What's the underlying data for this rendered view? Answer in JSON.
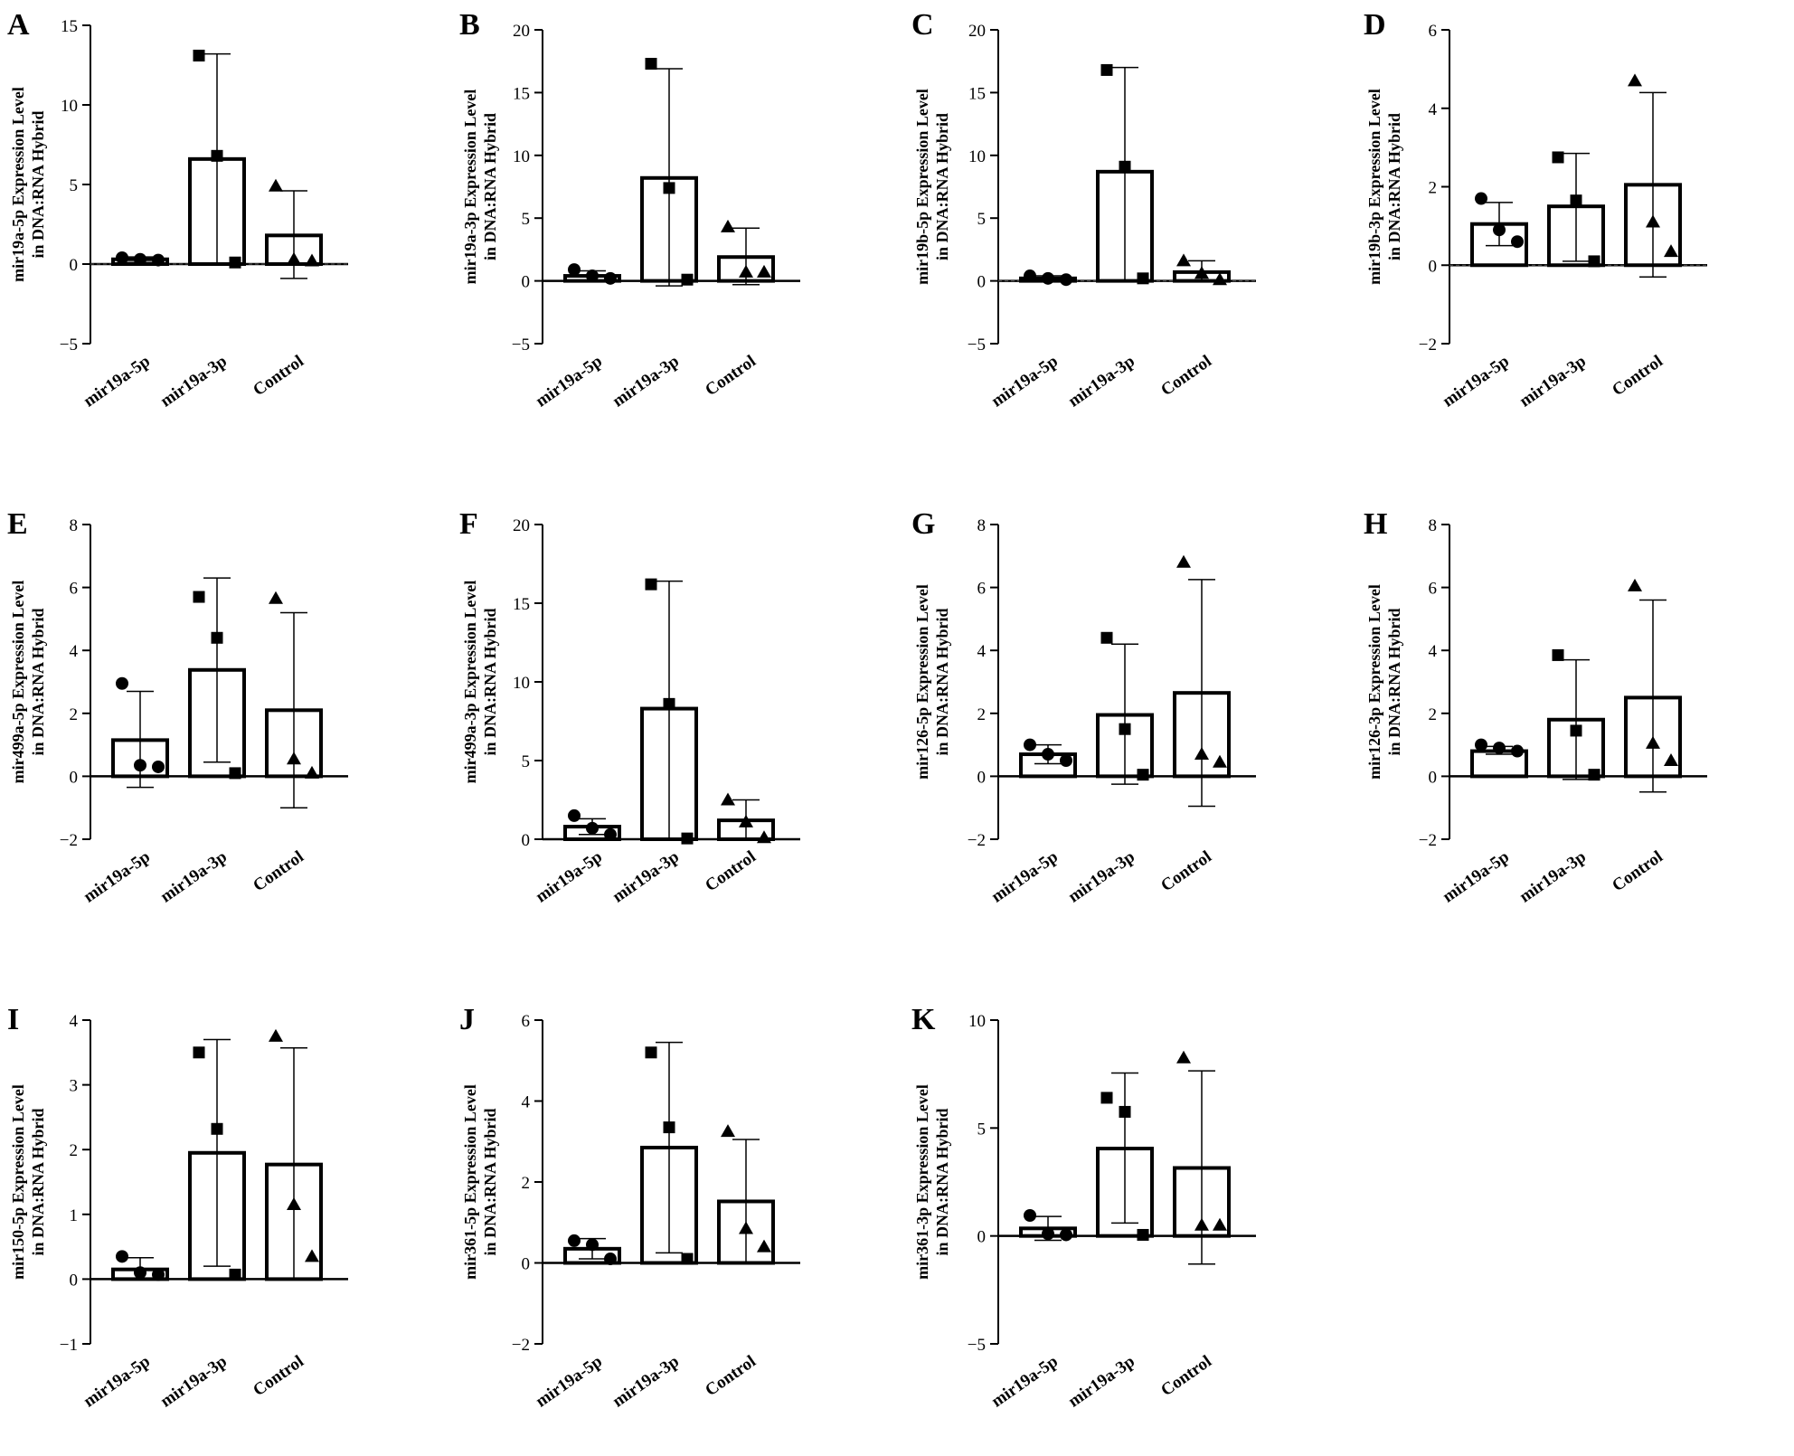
{
  "figure": {
    "title": ""
  },
  "chart_data": [
    {
      "panel": "A",
      "type": "bar",
      "ylabel_line1": "mir19a-5p Expression Level",
      "ylabel_line2": "in DNA:RNA Hybrid",
      "categories": [
        "mir19a-5p",
        "mir19a-3p",
        "Control"
      ],
      "ylim": [
        -5,
        15
      ],
      "yticks": [
        -5,
        0,
        5,
        10,
        15
      ],
      "dashed_zero": true,
      "values": [
        0.3,
        6.6,
        1.8
      ],
      "error_low": [
        0.1,
        0.0,
        -0.9
      ],
      "error_high": [
        0.45,
        13.2,
        4.6
      ],
      "points": [
        [
          0.4,
          0.3,
          0.25
        ],
        [
          13.1,
          6.8,
          0.1
        ],
        [
          4.9,
          0.3,
          0.2
        ]
      ]
    },
    {
      "panel": "B",
      "type": "bar",
      "ylabel_line1": "mir19a-3p Expression Level",
      "ylabel_line2": "in DNA:RNA Hybrid",
      "categories": [
        "mir19a-5p",
        "mir19a-3p",
        "Control"
      ],
      "ylim": [
        -5,
        20
      ],
      "yticks": [
        -5,
        0,
        5,
        10,
        15,
        20
      ],
      "dashed_zero": false,
      "values": [
        0.4,
        8.2,
        1.9
      ],
      "error_low": [
        0.0,
        -0.4,
        -0.3
      ],
      "error_high": [
        0.8,
        16.9,
        4.2
      ],
      "points": [
        [
          0.9,
          0.4,
          0.2
        ],
        [
          17.3,
          7.4,
          0.1
        ],
        [
          4.3,
          0.7,
          0.7
        ]
      ]
    },
    {
      "panel": "C",
      "type": "bar",
      "ylabel_line1": "mir19b-5p Expression Level",
      "ylabel_line2": "in DNA:RNA Hybrid",
      "categories": [
        "mir19a-5p",
        "mir19a-3p",
        "Control"
      ],
      "ylim": [
        -5,
        20
      ],
      "yticks": [
        -5,
        0,
        5,
        10,
        15,
        20
      ],
      "dashed_zero": true,
      "values": [
        0.2,
        8.7,
        0.7
      ],
      "error_low": [
        0.0,
        0.0,
        0.0
      ],
      "error_high": [
        0.4,
        17.0,
        1.6
      ],
      "points": [
        [
          0.4,
          0.2,
          0.1
        ],
        [
          16.8,
          9.1,
          0.2
        ],
        [
          1.6,
          0.6,
          0.1
        ]
      ]
    },
    {
      "panel": "D",
      "type": "bar",
      "ylabel_line1": "mir19b-3p Expression Level",
      "ylabel_line2": "in DNA:RNA Hybrid",
      "categories": [
        "mir19a-5p",
        "mir19a-3p",
        "Control"
      ],
      "ylim": [
        -2,
        6
      ],
      "yticks": [
        -2,
        0,
        2,
        4,
        6
      ],
      "dashed_zero": true,
      "values": [
        1.05,
        1.5,
        2.05
      ],
      "error_low": [
        0.5,
        0.1,
        -0.3
      ],
      "error_high": [
        1.6,
        2.85,
        4.4
      ],
      "points": [
        [
          1.7,
          0.9,
          0.6
        ],
        [
          2.75,
          1.65,
          0.1
        ],
        [
          4.7,
          1.1,
          0.35
        ]
      ]
    },
    {
      "panel": "E",
      "type": "bar",
      "ylabel_line1": "mir499a-5p Expression Level",
      "ylabel_line2": "in DNA:RNA Hybrid",
      "categories": [
        "mir19a-5p",
        "mir19a-3p",
        "Control"
      ],
      "ylim": [
        -2,
        8
      ],
      "yticks": [
        -2,
        0,
        2,
        4,
        6,
        8
      ],
      "dashed_zero": false,
      "values": [
        1.15,
        3.38,
        2.1
      ],
      "error_low": [
        -0.35,
        0.45,
        -1.0
      ],
      "error_high": [
        2.7,
        6.3,
        5.2
      ],
      "points": [
        [
          2.95,
          0.35,
          0.3
        ],
        [
          5.7,
          4.4,
          0.1
        ],
        [
          5.65,
          0.55,
          0.1
        ]
      ]
    },
    {
      "panel": "F",
      "type": "bar",
      "ylabel_line1": "mir499a-3p Expression Level",
      "ylabel_line2": "in DNA:RNA Hybrid",
      "categories": [
        "mir19a-5p",
        "mir19a-3p",
        "Control"
      ],
      "ylim": [
        0,
        20
      ],
      "yticks": [
        0,
        5,
        10,
        15,
        20
      ],
      "dashed_zero": false,
      "values": [
        0.8,
        8.3,
        1.2
      ],
      "error_low": [
        0.3,
        0.0,
        0.0
      ],
      "error_high": [
        1.3,
        16.4,
        2.5
      ],
      "points": [
        [
          1.5,
          0.7,
          0.3
        ],
        [
          16.2,
          8.6,
          0.05
        ],
        [
          2.5,
          1.1,
          0.1
        ]
      ]
    },
    {
      "panel": "G",
      "type": "bar",
      "ylabel_line1": "mir126-5p Expression Level",
      "ylabel_line2": "in DNA:RNA Hybrid",
      "categories": [
        "mir19a-5p",
        "mir19a-3p",
        "Control"
      ],
      "ylim": [
        -2,
        8
      ],
      "yticks": [
        -2,
        0,
        2,
        4,
        6,
        8
      ],
      "dashed_zero": false,
      "values": [
        0.7,
        1.95,
        2.65
      ],
      "error_low": [
        0.4,
        -0.25,
        -0.95
      ],
      "error_high": [
        1.0,
        4.2,
        6.25
      ],
      "points": [
        [
          1.0,
          0.7,
          0.5
        ],
        [
          4.4,
          1.5,
          0.05
        ],
        [
          6.8,
          0.7,
          0.45
        ]
      ]
    },
    {
      "panel": "H",
      "type": "bar",
      "ylabel_line1": "mir126-3p Expression Level",
      "ylabel_line2": "in DNA:RNA Hybrid",
      "categories": [
        "mir19a-5p",
        "mir19a-3p",
        "Control"
      ],
      "ylim": [
        -2,
        8
      ],
      "yticks": [
        -2,
        0,
        2,
        4,
        6,
        8
      ],
      "dashed_zero": false,
      "values": [
        0.8,
        1.8,
        2.5
      ],
      "error_low": [
        0.7,
        -0.1,
        -0.5
      ],
      "error_high": [
        0.95,
        3.7,
        5.6
      ],
      "points": [
        [
          1.0,
          0.9,
          0.8
        ],
        [
          3.85,
          1.45,
          0.05
        ],
        [
          6.05,
          1.05,
          0.5
        ]
      ]
    },
    {
      "panel": "I",
      "type": "bar",
      "ylabel_line1": "mir150-5p Expression Level",
      "ylabel_line2": "in DNA:RNA Hybrid",
      "categories": [
        "mir19a-5p",
        "mir19a-3p",
        "Control"
      ],
      "ylim": [
        -1,
        4
      ],
      "yticks": [
        -1,
        0,
        1,
        2,
        3,
        4
      ],
      "dashed_zero": false,
      "values": [
        0.15,
        1.95,
        1.77
      ],
      "error_low": [
        0.0,
        0.2,
        0.0
      ],
      "error_high": [
        0.33,
        3.7,
        3.57
      ],
      "points": [
        [
          0.35,
          0.1,
          0.07
        ],
        [
          3.5,
          2.32,
          0.07
        ],
        [
          3.75,
          1.15,
          0.35
        ]
      ]
    },
    {
      "panel": "J",
      "type": "bar",
      "ylabel_line1": "mir361-5p Expression Level",
      "ylabel_line2": "in DNA:RNA Hybrid",
      "categories": [
        "mir19a-5p",
        "mir19a-3p",
        "Control"
      ],
      "ylim": [
        -2,
        6
      ],
      "yticks": [
        -2,
        0,
        2,
        4,
        6
      ],
      "dashed_zero": false,
      "values": [
        0.35,
        2.85,
        1.52
      ],
      "error_low": [
        0.1,
        0.25,
        0.0
      ],
      "error_high": [
        0.6,
        5.45,
        3.05
      ],
      "points": [
        [
          0.55,
          0.45,
          0.1
        ],
        [
          5.2,
          3.35,
          0.1
        ],
        [
          3.25,
          0.85,
          0.4
        ]
      ]
    },
    {
      "panel": "K",
      "type": "bar",
      "ylabel_line1": "mir361-3p Expression Level",
      "ylabel_line2": "in DNA:RNA Hybrid",
      "categories": [
        "mir19a-5p",
        "mir19a-3p",
        "Control"
      ],
      "ylim": [
        -5,
        10
      ],
      "yticks": [
        -5,
        0,
        5,
        10
      ],
      "dashed_zero": false,
      "values": [
        0.35,
        4.05,
        3.15
      ],
      "error_low": [
        -0.2,
        0.6,
        -1.3
      ],
      "error_high": [
        0.9,
        7.55,
        7.65
      ],
      "points": [
        [
          0.95,
          0.1,
          0.05
        ],
        [
          6.4,
          5.75,
          0.05
        ],
        [
          8.25,
          0.5,
          0.5
        ]
      ]
    }
  ]
}
